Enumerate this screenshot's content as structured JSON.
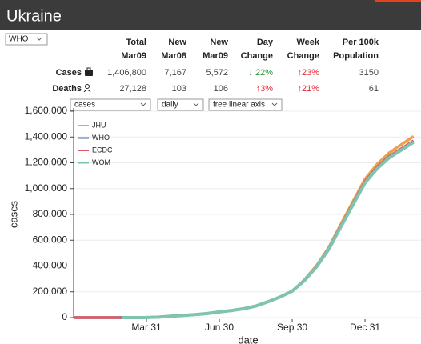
{
  "header": {
    "title": "Ukraine",
    "source": "WHO"
  },
  "table": {
    "columns": [
      [
        "Total",
        "Mar09"
      ],
      [
        "New",
        "Mar08"
      ],
      [
        "New",
        "Mar09"
      ],
      [
        "Day",
        "Change"
      ],
      [
        "Week",
        "Change"
      ],
      [
        "Per 100k",
        "Population"
      ]
    ],
    "rows": [
      {
        "label": "Cases",
        "cells": [
          "1,406,800",
          "7,167",
          "5,572",
          "↓ 22%",
          "↑23%",
          "3150"
        ]
      },
      {
        "label": "Deaths",
        "cells": [
          "27,128",
          "103",
          "106",
          "↑3%",
          "↑21%",
          "61"
        ]
      }
    ]
  },
  "controls": [
    "cases",
    "daily",
    "free linear axis"
  ],
  "chart_data": {
    "type": "line",
    "x_label": "date",
    "y_label": "cases",
    "categories": [
      null,
      null,
      null,
      null,
      null,
      "Mar 31",
      null,
      null,
      null,
      null,
      null,
      "Jun 30",
      null,
      null,
      null,
      null,
      null,
      "Sep 30",
      null,
      null,
      null,
      null,
      null,
      "Dec 31",
      null,
      null,
      null,
      null
    ],
    "series": [
      {
        "name": "JHU",
        "color": "#f0a04b",
        "values": [
          0,
          0,
          0,
          0,
          3,
          669,
          3800,
          10400,
          17300,
          23700,
          31800,
          44300,
          55300,
          69100,
          90000,
          123000,
          160000,
          205000,
          292000,
          402000,
          542000,
          722000,
          900000,
          1075000,
          1190000,
          1278000,
          1342000,
          1405000
        ]
      },
      {
        "name": "WHO",
        "color": "#4a72b0",
        "values": [
          0,
          0,
          0,
          0,
          3,
          669,
          3800,
          10400,
          17300,
          23700,
          31800,
          44300,
          55300,
          69100,
          90000,
          123000,
          160000,
          205000,
          288000,
          396000,
          533000,
          709000,
          882000,
          1055000,
          1165000,
          1250000,
          1310000,
          1370000
        ]
      },
      {
        "name": "ECDC",
        "color": "#e05a6a",
        "values": [
          0,
          0,
          0,
          0,
          3,
          669,
          3800,
          10400,
          17300,
          23700,
          31800,
          44300,
          55300,
          69100,
          90000,
          123000,
          160000,
          205000,
          288000,
          396000,
          533000,
          709000,
          882000,
          1055000,
          1165000,
          1250000,
          1310000,
          1370000
        ]
      },
      {
        "name": "WOM",
        "color": "#7dc5b0",
        "values": [
          null,
          null,
          null,
          0,
          3,
          669,
          3800,
          10400,
          17300,
          23700,
          31800,
          44300,
          55300,
          69100,
          90000,
          123000,
          160000,
          205000,
          286000,
          393000,
          528000,
          702000,
          874000,
          1045000,
          1155000,
          1240000,
          1300000,
          1360000
        ]
      }
    ],
    "ylim": [
      0,
      1600000
    ],
    "yticks": [
      0,
      {
        "value": 200000,
        "label": "200,000"
      },
      {
        "value": 400000,
        "label": "400,000"
      },
      {
        "value": 600000,
        "label": "600,000"
      },
      {
        "value": 800000,
        "label": "800,000"
      },
      {
        "value": 1000000,
        "label": "1,000,000"
      },
      {
        "value": 1200000,
        "label": "1,200,000"
      },
      {
        "value": 1400000,
        "label": "1,400,000"
      },
      {
        "value": 1600000,
        "label": "1,600,000"
      }
    ],
    "grid": true,
    "legend": "upper left"
  }
}
